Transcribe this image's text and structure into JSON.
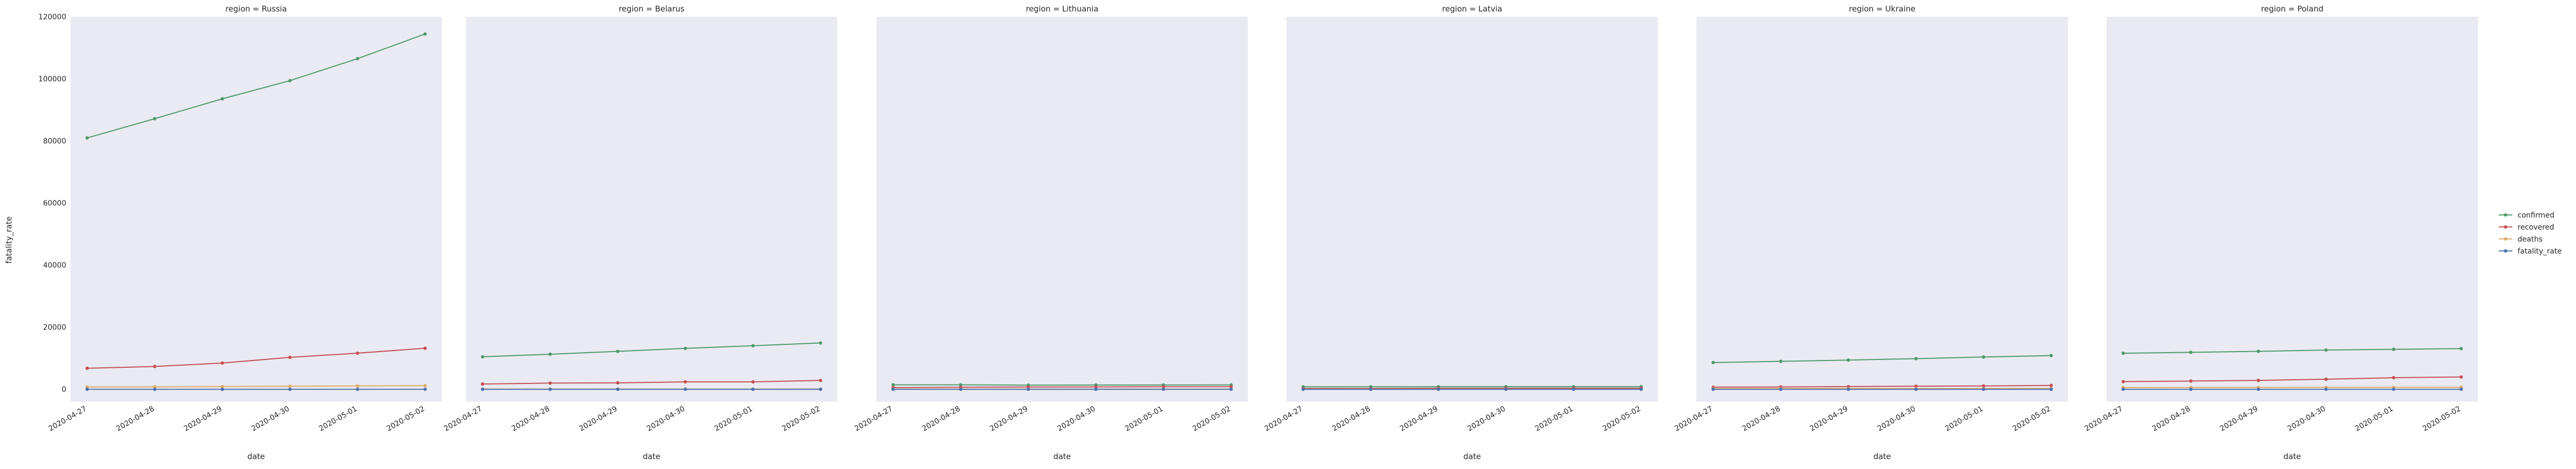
{
  "figure": {
    "ylabel": "fatality_rate",
    "xlabel": "date"
  },
  "legend": {
    "placement": "right",
    "entries": [
      {
        "name": "confirmed",
        "color": "#4c9a6a"
      },
      {
        "name": "recovered",
        "color": "#c44e52"
      },
      {
        "name": "deaths",
        "color": "#ddaa66"
      },
      {
        "name": "fatality_rate",
        "color": "#4c72b0"
      }
    ]
  },
  "chart_data": [
    {
      "type": "line",
      "title": "region = Russia",
      "x": [
        "2020-04-27",
        "2020-04-28",
        "2020-04-29",
        "2020-04-30",
        "2020-05-01",
        "2020-05-02"
      ],
      "xlabel": "date",
      "ylabel": "fatality_rate",
      "ylim": [
        -4000,
        120000
      ],
      "yticks": [
        0,
        20000,
        40000,
        60000,
        80000,
        100000,
        120000
      ],
      "grid": false,
      "series": [
        {
          "name": "confirmed",
          "values": [
            80949,
            87147,
            93558,
            99399,
            106498,
            114431
          ]
        },
        {
          "name": "recovered",
          "values": [
            6767,
            7346,
            8456,
            10286,
            11619,
            13220
          ]
        },
        {
          "name": "deaths",
          "values": [
            747,
            794,
            867,
            972,
            1073,
            1169
          ]
        },
        {
          "name": "fatality_rate",
          "values": [
            0.92,
            0.91,
            0.93,
            0.98,
            1.01,
            1.02
          ]
        }
      ]
    },
    {
      "type": "line",
      "title": "region = Belarus",
      "x": [
        "2020-04-27",
        "2020-04-28",
        "2020-04-29",
        "2020-04-30",
        "2020-05-01",
        "2020-05-02"
      ],
      "xlabel": "date",
      "ylim": [
        -4000,
        120000
      ],
      "grid": false,
      "series": [
        {
          "name": "confirmed",
          "values": [
            10463,
            11289,
            12208,
            13181,
            14027,
            14917
          ]
        },
        {
          "name": "recovered",
          "values": [
            1695,
            1993,
            2072,
            2386,
            2386,
            2849
          ]
        },
        {
          "name": "deaths",
          "values": [
            72,
            75,
            79,
            84,
            89,
            93
          ]
        },
        {
          "name": "fatality_rate",
          "values": [
            0.69,
            0.66,
            0.65,
            0.64,
            0.63,
            0.62
          ]
        }
      ]
    },
    {
      "type": "line",
      "title": "region = Lithuania",
      "x": [
        "2020-04-27",
        "2020-04-28",
        "2020-04-29",
        "2020-04-30",
        "2020-05-01",
        "2020-05-02"
      ],
      "xlabel": "date",
      "ylim": [
        -4000,
        120000
      ],
      "grid": false,
      "series": [
        {
          "name": "confirmed",
          "values": [
            1449,
            1438,
            1344,
            1385,
            1399,
            1410
          ]
        },
        {
          "name": "recovered",
          "values": [
            536,
            664,
            717,
            763,
            822,
            836
          ]
        },
        {
          "name": "deaths",
          "values": [
            44,
            44,
            45,
            45,
            46,
            46
          ]
        },
        {
          "name": "fatality_rate",
          "values": [
            3.04,
            3.06,
            3.35,
            3.25,
            3.29,
            3.26
          ]
        }
      ]
    },
    {
      "type": "line",
      "title": "region = Latvia",
      "x": [
        "2020-04-27",
        "2020-04-28",
        "2020-04-29",
        "2020-04-30",
        "2020-05-01",
        "2020-05-02"
      ],
      "xlabel": "date",
      "ylim": [
        -4000,
        120000
      ],
      "grid": false,
      "series": [
        {
          "name": "confirmed",
          "values": [
            804,
            818,
            836,
            849,
            858,
            864
          ]
        },
        {
          "name": "recovered",
          "values": [
            243,
            270,
            312,
            331,
            350,
            360
          ]
        },
        {
          "name": "deaths",
          "values": [
            12,
            13,
            13,
            15,
            16,
            16
          ]
        },
        {
          "name": "fatality_rate",
          "values": [
            1.49,
            1.59,
            1.56,
            1.77,
            1.86,
            1.85
          ]
        }
      ]
    },
    {
      "type": "line",
      "title": "region = Ukraine",
      "x": [
        "2020-04-27",
        "2020-04-28",
        "2020-04-29",
        "2020-04-30",
        "2020-05-01",
        "2020-05-02"
      ],
      "xlabel": "date",
      "ylim": [
        -4000,
        120000
      ],
      "grid": false,
      "series": [
        {
          "name": "confirmed",
          "values": [
            8617,
            9009,
            9410,
            9866,
            10406,
            10861
          ]
        },
        {
          "name": "recovered",
          "values": [
            688,
            760,
            866,
            992,
            1072,
            1238
          ]
        },
        {
          "name": "deaths",
          "values": [
            209,
            220,
            239,
            250,
            261,
            272
          ]
        },
        {
          "name": "fatality_rate",
          "values": [
            2.43,
            2.44,
            2.54,
            2.53,
            2.51,
            2.5
          ]
        }
      ]
    },
    {
      "type": "line",
      "title": "region = Poland",
      "x": [
        "2020-04-27",
        "2020-04-28",
        "2020-04-29",
        "2020-04-30",
        "2020-05-01",
        "2020-05-02"
      ],
      "xlabel": "date",
      "ylim": [
        -4000,
        120000
      ],
      "grid": false,
      "series": [
        {
          "name": "confirmed",
          "values": [
            11617,
            11902,
            12218,
            12640,
            12877,
            13105
          ]
        },
        {
          "name": "recovered",
          "values": [
            2466,
            2655,
            2866,
            3236,
            3731,
            3957
          ]
        },
        {
          "name": "deaths",
          "values": [
            535,
            562,
            596,
            624,
            644,
            651
          ]
        },
        {
          "name": "fatality_rate",
          "values": [
            4.61,
            4.72,
            4.88,
            4.94,
            5.0,
            4.97
          ]
        }
      ]
    }
  ]
}
